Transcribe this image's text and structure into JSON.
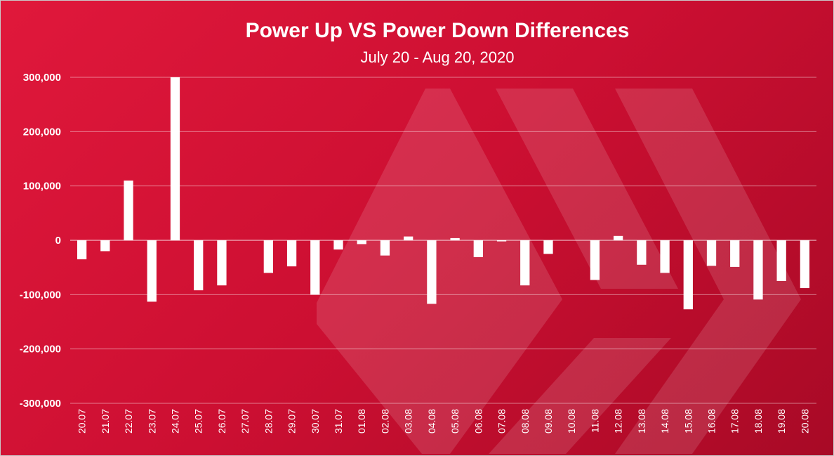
{
  "chart_data": {
    "type": "bar",
    "title": "Power Up VS Power Down Differences",
    "subtitle": "July 20 - Aug 20, 2020",
    "xlabel": "",
    "ylabel": "",
    "ylim": [
      -300000,
      300000
    ],
    "yticks": [
      300000,
      200000,
      100000,
      0,
      -100000,
      -200000,
      -300000
    ],
    "ytick_labels": [
      "300,000",
      "200,000",
      "100,000",
      "0",
      "-100,000",
      "-200,000",
      "-300,000"
    ],
    "grid": true,
    "legend": "none",
    "bar_color": "#ffffff",
    "background_color": "#d3122f",
    "watermark": "hive-logo-icon",
    "categories": [
      "20.07",
      "21.07",
      "22.07",
      "23.07",
      "24.07",
      "25.07",
      "26.07",
      "27.07",
      "28.07",
      "29.07",
      "30.07",
      "31.07",
      "01.08",
      "02.08",
      "03.08",
      "04.08",
      "05.08",
      "06.08",
      "07.08",
      "08.08",
      "09.08",
      "10.08",
      "11.08",
      "12.08",
      "13.08",
      "14.08",
      "15.08",
      "16.08",
      "17.08",
      "18.08",
      "19.08",
      "20.08"
    ],
    "values": [
      -35000,
      -20000,
      110000,
      -113000,
      300000,
      -92000,
      -83000,
      0,
      -60000,
      -48000,
      -100000,
      -17000,
      -7000,
      -28000,
      7000,
      -117000,
      4000,
      -31000,
      -2000,
      -83000,
      -25000,
      0,
      -73000,
      8000,
      -45000,
      -60000,
      -127000,
      -47000,
      -49000,
      -109000,
      -75000,
      -88000
    ]
  }
}
